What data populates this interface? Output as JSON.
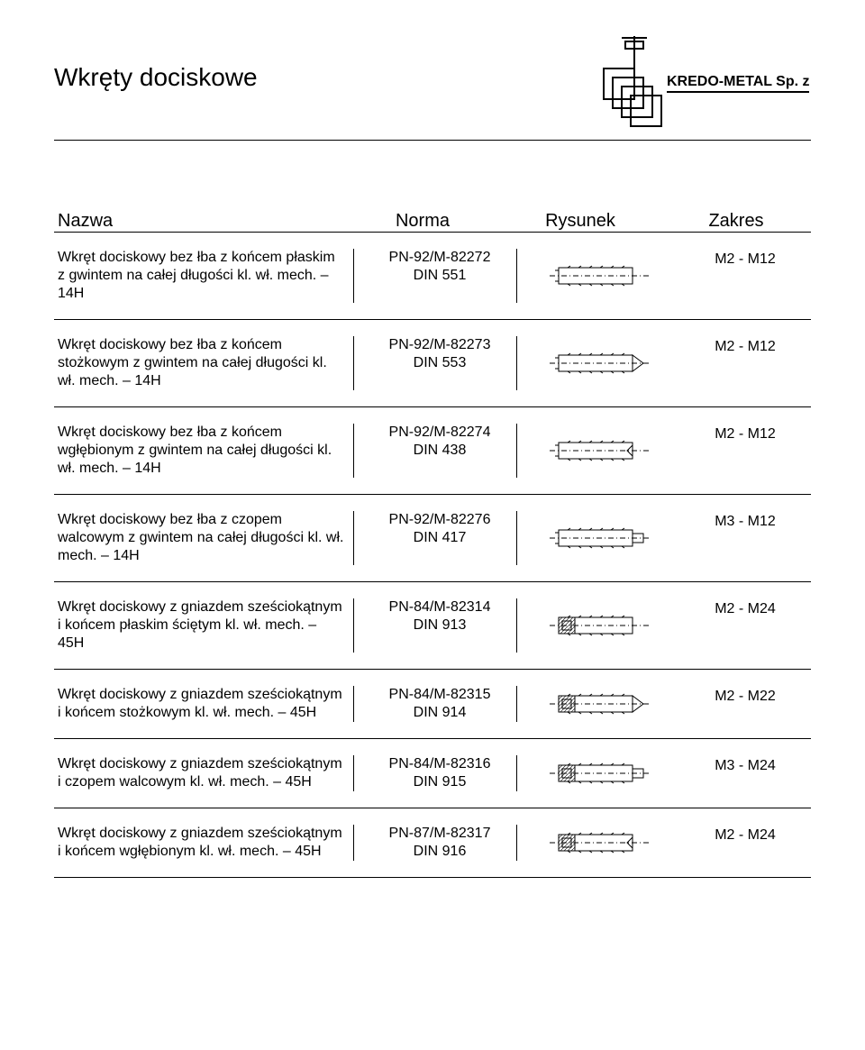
{
  "header": {
    "title": "Wkręty dociskowe",
    "brand_line1": "KREDO-METAL Sp. z o.o."
  },
  "columns": {
    "name": "Nazwa",
    "norm": "Norma",
    "drawing": "Rysunek",
    "range": "Zakres"
  },
  "rows": [
    {
      "name": "Wkręt dociskowy bez łba z końcem płaskim z gwintem na całej długości kl. wł. mech. – 14H",
      "norm1": "PN-92/M-82272",
      "norm2": "DIN 551",
      "range": "M2 - M12",
      "tip": "flat",
      "socket": false
    },
    {
      "name": "Wkręt dociskowy bez łba z końcem stożkowym z gwintem na całej długości kl. wł. mech. – 14H",
      "norm1": "PN-92/M-82273",
      "norm2": "DIN 553",
      "range": "M2 - M12",
      "tip": "cone",
      "socket": false
    },
    {
      "name": "Wkręt dociskowy bez łba z końcem wgłębionym z gwintem na całej długości kl. wł. mech. – 14H",
      "norm1": "PN-92/M-82274",
      "norm2": "DIN 438",
      "range": "M2 - M12",
      "tip": "cup",
      "socket": false
    },
    {
      "name": "Wkręt dociskowy bez łba z czopem walcowym z gwintem na całej długości kl. wł. mech. – 14H",
      "norm1": "PN-92/M-82276",
      "norm2": "DIN 417",
      "range": "M3 - M12",
      "tip": "dog",
      "socket": false
    },
    {
      "name": "Wkręt dociskowy z gniazdem sześciokątnym i końcem płaskim ściętym kl. wł. mech. – 45H",
      "norm1": "PN-84/M-82314",
      "norm2": "DIN 913",
      "range": "M2 - M24",
      "tip": "flat",
      "socket": true
    },
    {
      "name": "Wkręt dociskowy z gniazdem sześciokątnym i końcem stożkowym kl. wł. mech. – 45H",
      "norm1": "PN-84/M-82315",
      "norm2": "DIN 914",
      "range": "M2 - M22",
      "tip": "cone",
      "socket": true
    },
    {
      "name": "Wkręt dociskowy z gniazdem sześciokątnym i czopem walcowym kl. wł. mech. – 45H",
      "norm1": "PN-84/M-82316",
      "norm2": "DIN 915",
      "range": "M3 - M24",
      "tip": "dog",
      "socket": true
    },
    {
      "name": "Wkręt dociskowy z gniazdem sześciokątnym i końcem wgłębionym kl. wł. mech. – 45H",
      "norm1": "PN-87/M-82317",
      "norm2": "DIN 916",
      "range": "M2 - M24",
      "tip": "cup",
      "socket": true
    }
  ]
}
